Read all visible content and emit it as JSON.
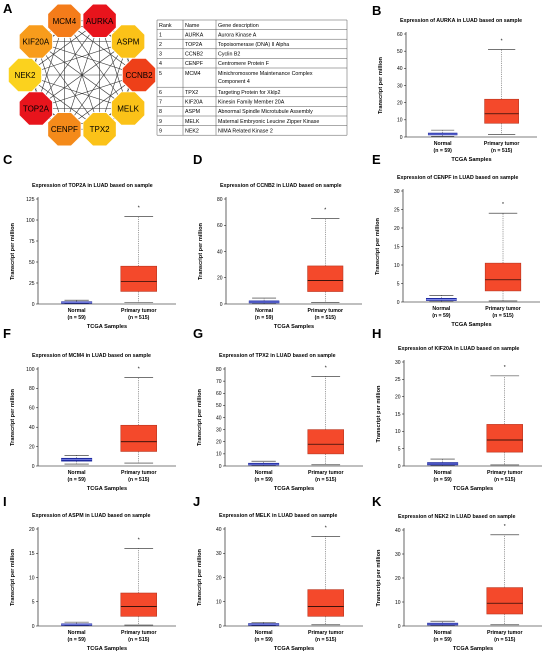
{
  "network": {
    "letter": "A",
    "nodes": [
      {
        "label": "AURKA",
        "color": "#e8141c"
      },
      {
        "label": "ASPM",
        "color": "#fbc218"
      },
      {
        "label": "CCNB2",
        "color": "#ee4019"
      },
      {
        "label": "MELK",
        "color": "#fbc218"
      },
      {
        "label": "TPX2",
        "color": "#fbc218"
      },
      {
        "label": "CENPF",
        "color": "#f48a1a"
      },
      {
        "label": "TOP2A",
        "color": "#e8141c"
      },
      {
        "label": "NEK2",
        "color": "#fbd21e"
      },
      {
        "label": "KIF20A",
        "color": "#f89c1c"
      },
      {
        "label": "MCM4",
        "color": "#f47c1a"
      }
    ]
  },
  "table": {
    "headers": [
      "Rank",
      "Name",
      "Gene description"
    ],
    "rows": [
      [
        "1",
        "AURKA",
        "Aurora Kinase A"
      ],
      [
        "2",
        "TOP2A",
        "Topoisomerase (DNA) II Alpha"
      ],
      [
        "3",
        "CCNB2",
        "Cyclin B2"
      ],
      [
        "4",
        "CENPF",
        "Centromere Protein F"
      ],
      [
        "5",
        "MCM4",
        "Minichromosome Maintenance Complex Component 4"
      ],
      [
        "6",
        "TPX2",
        "Targeting Protein for Xklp2"
      ],
      [
        "7",
        "KIF20A",
        "Kinesin Family Member 20A"
      ],
      [
        "8",
        "ASPM",
        "Abnormal Spindle Microtubule Assembly"
      ],
      [
        "9",
        "MELK",
        "Maternal Embryonic Leucine Zipper Kinase"
      ],
      [
        "9",
        "NEK2",
        "NIMA Related Kinase 2"
      ]
    ]
  },
  "colors": {
    "normal_box": "#1f2aa0",
    "tumor_box": "#f4492b",
    "tumor_edge": "#b8341e"
  },
  "chart_data": [
    {
      "letter": "B",
      "type": "box",
      "title": "Expression of AURKA in LUAD based on sample",
      "ylabel": "Transcript per million",
      "xlabel": "TCGA Samples",
      "ylim": [
        0,
        60
      ],
      "ticks": [
        0,
        10,
        20,
        30,
        40,
        50,
        60
      ],
      "groups": [
        {
          "name": "Normal",
          "n": "(n = 59)",
          "min": 0.3,
          "q1": 1.2,
          "median": 1.7,
          "q3": 2.3,
          "max": 4.0
        },
        {
          "name": "Primary tumor",
          "n": "(n = 515)",
          "min": 1.5,
          "q1": 8.0,
          "median": 13.5,
          "q3": 22.0,
          "max": 51.0
        }
      ],
      "sig": "*"
    },
    {
      "letter": "C",
      "type": "box",
      "title": "Expression of TOP2A in LUAD based on sample",
      "ylabel": "Transcript per million",
      "xlabel": "TCGA Samples",
      "ylim": [
        0,
        125
      ],
      "ticks": [
        0,
        25,
        50,
        75,
        100,
        125
      ],
      "groups": [
        {
          "name": "Normal",
          "n": "(n = 59)",
          "min": 0.3,
          "q1": 1.0,
          "median": 1.7,
          "q3": 2.7,
          "max": 4.5
        },
        {
          "name": "Primary tumor",
          "n": "(n = 515)",
          "min": 1.5,
          "q1": 15.0,
          "median": 27.0,
          "q3": 45.0,
          "max": 104.0
        }
      ],
      "sig": "*"
    },
    {
      "letter": "D",
      "type": "box",
      "title": "Expression of CCNB2 in LUAD based on sample",
      "ylabel": "Transcript per million",
      "xlabel": "TCGA Samples",
      "ylim": [
        0,
        80
      ],
      "ticks": [
        0,
        20,
        40,
        60,
        80
      ],
      "groups": [
        {
          "name": "Normal",
          "n": "(n = 59)",
          "min": 0.2,
          "q1": 0.8,
          "median": 1.5,
          "q3": 2.4,
          "max": 4.5
        },
        {
          "name": "Primary tumor",
          "n": "(n = 515)",
          "min": 1.0,
          "q1": 9.5,
          "median": 18.0,
          "q3": 29.0,
          "max": 65.0
        }
      ],
      "sig": "*"
    },
    {
      "letter": "E",
      "type": "box",
      "title": "Expression of CENPF in LUAD based on sample",
      "ylabel": "Transcript per million",
      "xlabel": "TCGA Samples",
      "ylim": [
        0,
        30
      ],
      "ticks": [
        0,
        5,
        10,
        15,
        20,
        25,
        30
      ],
      "groups": [
        {
          "name": "Normal",
          "n": "(n = 59)",
          "min": 0.1,
          "q1": 0.4,
          "median": 0.7,
          "q3": 1.0,
          "max": 1.8
        },
        {
          "name": "Primary tumor",
          "n": "(n = 515)",
          "min": 0.3,
          "q1": 3.0,
          "median": 6.0,
          "q3": 10.5,
          "max": 24.0
        }
      ],
      "sig": "*"
    },
    {
      "letter": "F",
      "type": "box",
      "title": "Expression of MCM4 in LUAD based on sample",
      "ylabel": "Transcript per million",
      "xlabel": "TCGA Samples",
      "ylim": [
        0,
        100
      ],
      "ticks": [
        0,
        20,
        40,
        60,
        80,
        100
      ],
      "groups": [
        {
          "name": "Normal",
          "n": "(n = 59)",
          "min": 2.0,
          "q1": 5.0,
          "median": 6.5,
          "q3": 8.0,
          "max": 11.0
        },
        {
          "name": "Primary tumor",
          "n": "(n = 515)",
          "min": 3.0,
          "q1": 15.0,
          "median": 25.0,
          "q3": 42.0,
          "max": 91.0
        }
      ],
      "sig": "*"
    },
    {
      "letter": "G",
      "type": "box",
      "title": "Expression of TPX2 in LUAD based on sample",
      "ylabel": "Transcript per million",
      "xlabel": "TCGA Samples",
      "ylim": [
        0,
        80
      ],
      "ticks": [
        0,
        10,
        20,
        30,
        40,
        50,
        60,
        70,
        80
      ],
      "groups": [
        {
          "name": "Normal",
          "n": "(n = 59)",
          "min": 0.2,
          "q1": 0.8,
          "median": 1.5,
          "q3": 2.3,
          "max": 4.0
        },
        {
          "name": "Primary tumor",
          "n": "(n = 515)",
          "min": 1.0,
          "q1": 10.0,
          "median": 18.0,
          "q3": 30.0,
          "max": 74.0
        }
      ],
      "sig": "*"
    },
    {
      "letter": "H",
      "type": "box",
      "title": "Expression of KIF20A in LUAD based on sample",
      "ylabel": "Transcript per million",
      "xlabel": "TCGA Samples",
      "ylim": [
        0,
        30
      ],
      "ticks": [
        0,
        5,
        10,
        15,
        20,
        25,
        30
      ],
      "groups": [
        {
          "name": "Normal",
          "n": "(n = 59)",
          "min": 0.1,
          "q1": 0.3,
          "median": 0.6,
          "q3": 1.0,
          "max": 2.0
        },
        {
          "name": "Primary tumor",
          "n": "(n = 515)",
          "min": 0.3,
          "q1": 4.0,
          "median": 7.5,
          "q3": 12.0,
          "max": 26.0
        }
      ],
      "sig": "*"
    },
    {
      "letter": "I",
      "type": "box",
      "title": "Expression of ASPM in LUAD based on sample",
      "ylabel": "Transcript per million",
      "xlabel": "TCGA Samples",
      "ylim": [
        0,
        20
      ],
      "ticks": [
        0,
        5,
        10,
        15,
        20
      ],
      "groups": [
        {
          "name": "Normal",
          "n": "(n = 59)",
          "min": 0.05,
          "q1": 0.15,
          "median": 0.3,
          "q3": 0.45,
          "max": 0.8
        },
        {
          "name": "Primary tumor",
          "n": "(n = 515)",
          "min": 0.2,
          "q1": 2.0,
          "median": 4.0,
          "q3": 6.8,
          "max": 16.0
        }
      ],
      "sig": "*"
    },
    {
      "letter": "J",
      "type": "box",
      "title": "Expression of MELK in LUAD based on sample",
      "ylabel": "Transcript per million",
      "xlabel": "TCGA Samples",
      "ylim": [
        0,
        40
      ],
      "ticks": [
        0,
        10,
        20,
        30,
        40
      ],
      "groups": [
        {
          "name": "Normal",
          "n": "(n = 59)",
          "min": 0.1,
          "q1": 0.3,
          "median": 0.6,
          "q3": 1.0,
          "max": 1.5
        },
        {
          "name": "Primary tumor",
          "n": "(n = 515)",
          "min": 0.5,
          "q1": 4.0,
          "median": 8.0,
          "q3": 15.0,
          "max": 37.0
        }
      ],
      "sig": "*"
    },
    {
      "letter": "K",
      "type": "box",
      "title": "Expression of NEK2 in LUAD based on sample",
      "ylabel": "Transcript per million",
      "xlabel": "TCGA Samples",
      "ylim": [
        0,
        40
      ],
      "ticks": [
        0,
        10,
        20,
        30,
        40
      ],
      "groups": [
        {
          "name": "Normal",
          "n": "(n = 59)",
          "min": 0.1,
          "q1": 0.4,
          "median": 0.8,
          "q3": 1.2,
          "max": 2.0
        },
        {
          "name": "Primary tumor",
          "n": "(n = 515)",
          "min": 0.5,
          "q1": 5.0,
          "median": 9.5,
          "q3": 16.0,
          "max": 38.0
        }
      ],
      "sig": "*"
    }
  ]
}
